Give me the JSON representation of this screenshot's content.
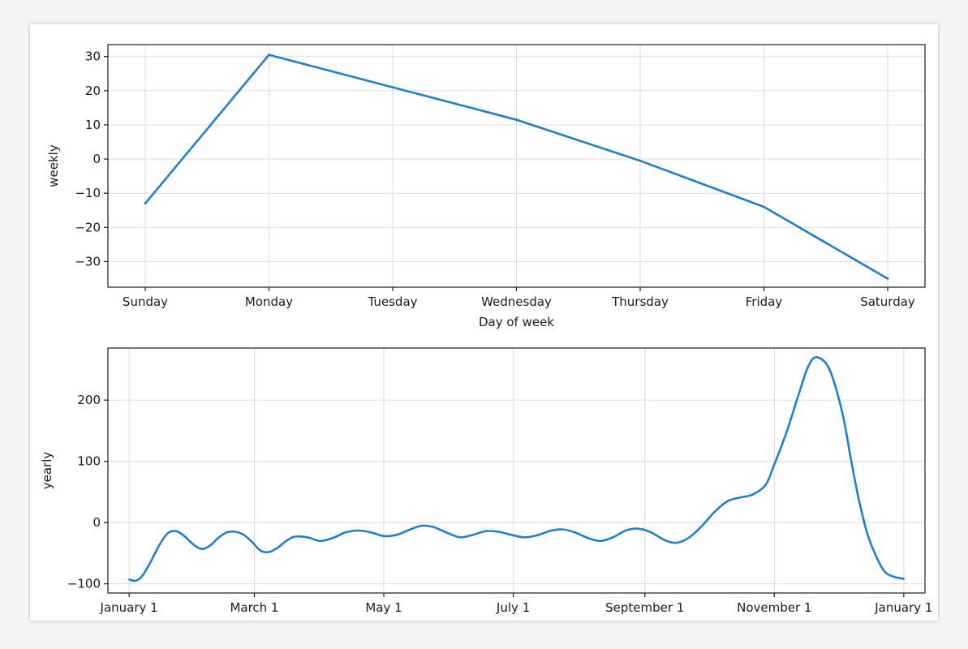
{
  "chart_data": [
    {
      "type": "line",
      "title": "",
      "xlabel": "Day of week",
      "ylabel": "weekly",
      "categories": [
        "Sunday",
        "Monday",
        "Tuesday",
        "Wednesday",
        "Thursday",
        "Friday",
        "Saturday"
      ],
      "series": [
        {
          "values": [
            -13,
            30.5,
            21,
            11.5,
            -0.5,
            -14,
            -35
          ],
          "color": "#1f77b4"
        }
      ],
      "ylim": [
        -37.5,
        33.5
      ],
      "yticks": [
        30,
        20,
        10,
        0,
        -10,
        -20,
        -30
      ],
      "ytick_labels": [
        "30",
        "20",
        "10",
        "0",
        "−10",
        "−20",
        "−30"
      ],
      "grid": true
    },
    {
      "type": "line",
      "title": "",
      "xlabel": "",
      "ylabel": "yearly",
      "x_axis": "day of year",
      "xlim": [
        -10,
        375
      ],
      "ylim": [
        -115,
        285
      ],
      "xticks": [
        0,
        59,
        120,
        181,
        243,
        304,
        365
      ],
      "xtick_labels": [
        "January 1",
        "March 1",
        "May 1",
        "July 1",
        "September 1",
        "November 1",
        "January 1"
      ],
      "yticks": [
        200,
        100,
        0,
        -100
      ],
      "ytick_labels": [
        "200",
        "100",
        "0",
        "−100"
      ],
      "grid": true,
      "series": [
        {
          "color": "#1f77b4",
          "x": [
            0,
            3,
            6,
            10,
            14,
            18,
            22,
            26,
            30,
            34,
            38,
            42,
            46,
            50,
            54,
            58,
            62,
            66,
            70,
            74,
            78,
            84,
            90,
            96,
            102,
            108,
            114,
            120,
            126,
            132,
            138,
            144,
            150,
            156,
            162,
            168,
            174,
            180,
            186,
            192,
            198,
            204,
            210,
            216,
            222,
            228,
            234,
            240,
            246,
            252,
            258,
            264,
            270,
            276,
            282,
            288,
            294,
            300,
            304,
            310,
            316,
            320,
            324,
            330,
            336,
            340,
            344,
            348,
            352,
            356,
            360,
            365
          ],
          "y": [
            -93,
            -95,
            -88,
            -65,
            -38,
            -18,
            -14,
            -22,
            -35,
            -43,
            -38,
            -25,
            -16,
            -15,
            -20,
            -32,
            -46,
            -48,
            -41,
            -30,
            -23,
            -24,
            -30,
            -25,
            -16,
            -13,
            -16,
            -22,
            -20,
            -12,
            -5,
            -8,
            -17,
            -24,
            -20,
            -14,
            -15,
            -20,
            -24,
            -21,
            -14,
            -11,
            -16,
            -25,
            -30,
            -24,
            -13,
            -10,
            -16,
            -28,
            -33,
            -24,
            -5,
            18,
            35,
            41,
            46,
            62,
            95,
            150,
            215,
            255,
            270,
            250,
            180,
            105,
            35,
            -20,
            -55,
            -80,
            -88,
            -92
          ]
        }
      ]
    }
  ]
}
